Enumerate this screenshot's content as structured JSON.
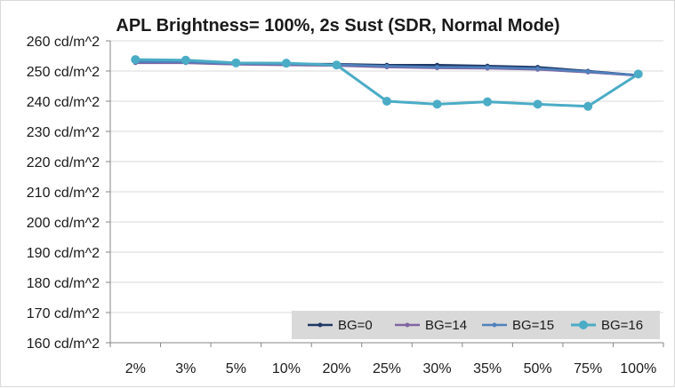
{
  "chart_data": {
    "type": "line",
    "title": "APL Brightness= 100%, 2s Sust (SDR, Normal Mode)",
    "xlabel": "",
    "ylabel": "",
    "categories": [
      "2%",
      "3%",
      "5%",
      "10%",
      "20%",
      "25%",
      "30%",
      "35%",
      "50%",
      "75%",
      "100%"
    ],
    "ylim": [
      160,
      260
    ],
    "ytick_step": 10,
    "ytick_labels": [
      "160 cd/m^2",
      "170 cd/m^2",
      "180 cd/m^2",
      "190 cd/m^2",
      "200 cd/m^2",
      "210 cd/m^2",
      "220 cd/m^2",
      "230 cd/m^2",
      "240 cd/m^2",
      "250 cd/m^2",
      "260 cd/m^2"
    ],
    "grid": true,
    "legend_position": "bottom-right",
    "series": [
      {
        "name": "BG=0",
        "color": "#1f3864",
        "marker_size": 2.5,
        "line_width": 2.5,
        "values": [
          253,
          253,
          252.3,
          252.3,
          252.3,
          252,
          252,
          251.7,
          251.3,
          250,
          248.6
        ]
      },
      {
        "name": "BG=14",
        "color": "#8064a2",
        "marker_size": 2.5,
        "line_width": 2.5,
        "values": [
          252.7,
          252.7,
          252.2,
          252,
          251.8,
          251.3,
          251,
          250.9,
          250.5,
          249.6,
          248.5
        ]
      },
      {
        "name": "BG=15",
        "color": "#4f81bd",
        "marker_size": 2.5,
        "line_width": 2.5,
        "values": [
          253,
          253,
          252.5,
          252.3,
          252.1,
          251.6,
          251.3,
          251.2,
          250.8,
          249.8,
          248.6
        ]
      },
      {
        "name": "BG=16",
        "color": "#4bacc6",
        "marker_size": 5,
        "line_width": 3,
        "values": [
          253.8,
          253.6,
          252.7,
          252.6,
          252,
          240,
          239,
          239.8,
          239,
          238.3,
          249
        ]
      }
    ]
  }
}
